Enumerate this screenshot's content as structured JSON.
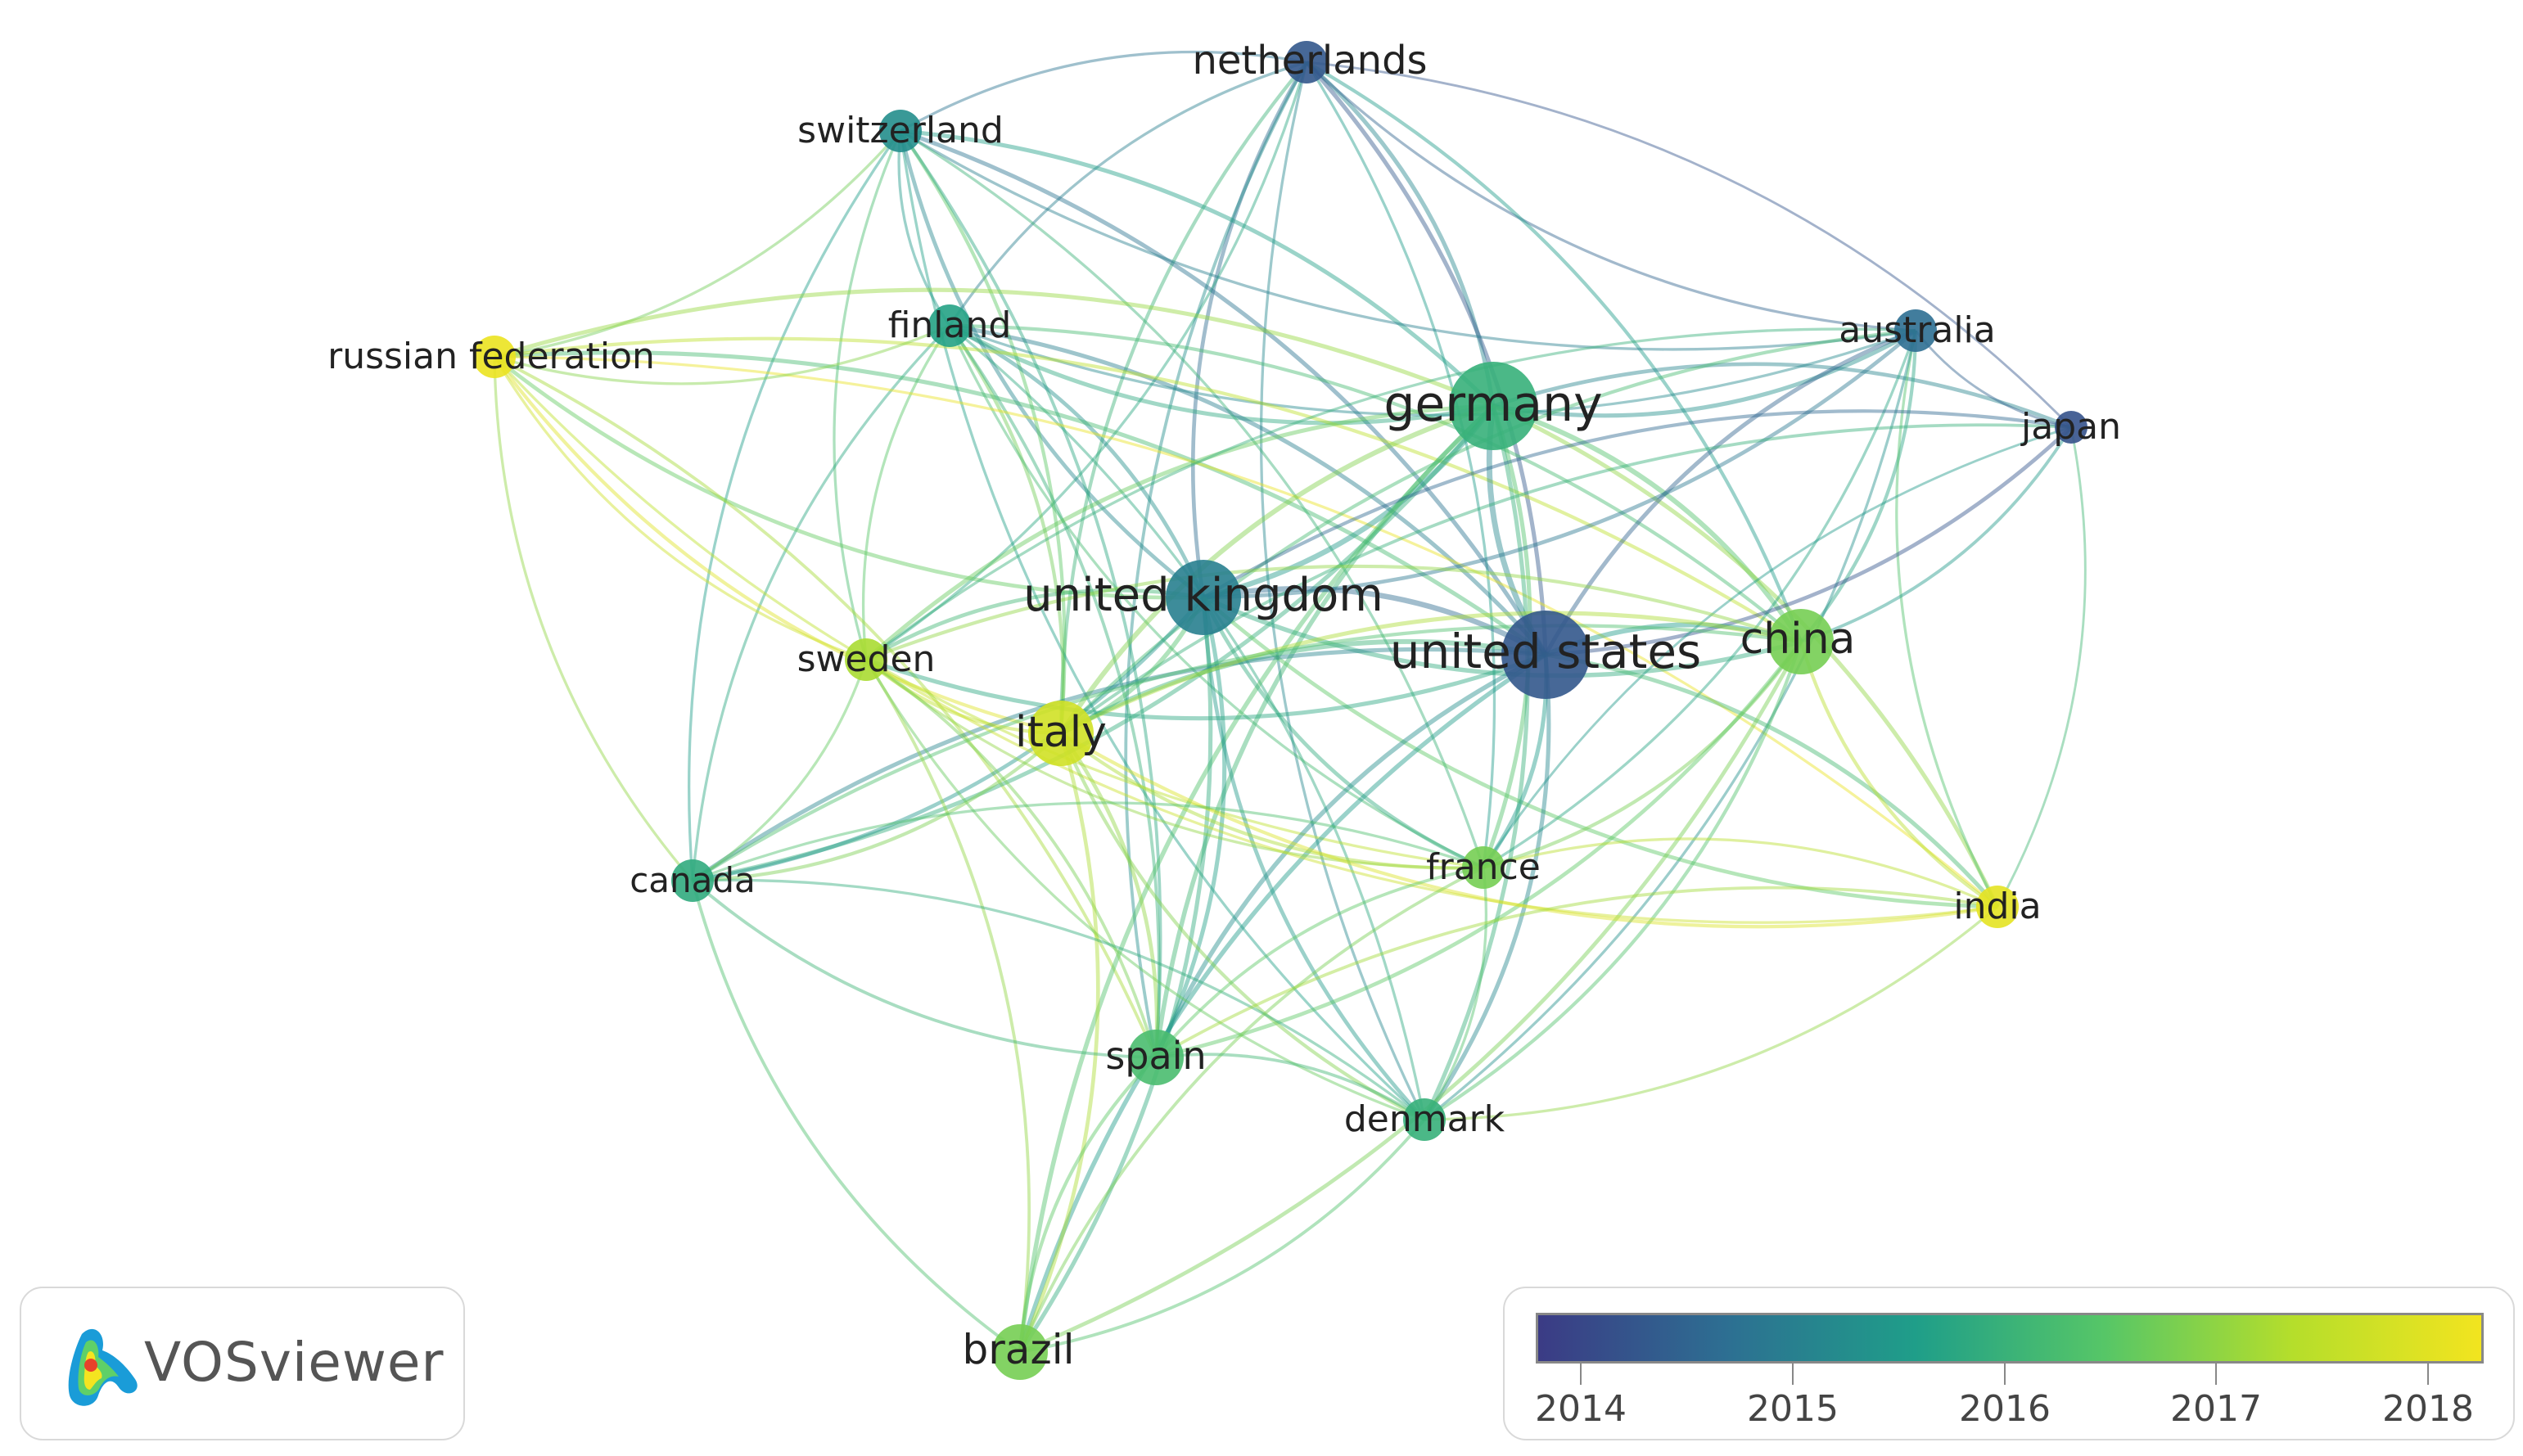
{
  "brand": {
    "name": "VOSviewer"
  },
  "legend": {
    "ticks": [
      "2014",
      "2015",
      "2016",
      "2017",
      "2018"
    ],
    "range": [
      2013.7,
      2018.2
    ],
    "gradient": [
      "#3b3b85",
      "#2d6f92",
      "#1f9e89",
      "#56c667",
      "#b5de2b",
      "#f2e41f"
    ]
  },
  "network": {
    "nodes": [
      {
        "id": "netherlands",
        "label": "netherlands",
        "year": 2014.2,
        "weight": 2
      },
      {
        "id": "switzerland",
        "label": "switzerland",
        "year": 2015.2,
        "weight": 2
      },
      {
        "id": "finland",
        "label": "finland",
        "year": 2015.6,
        "weight": 2
      },
      {
        "id": "russian-federation",
        "label": "russian federation",
        "year": 2018.1,
        "weight": 2
      },
      {
        "id": "germany",
        "label": "germany",
        "year": 2015.9,
        "weight": 6
      },
      {
        "id": "australia",
        "label": "australia",
        "year": 2014.6,
        "weight": 2
      },
      {
        "id": "japan",
        "label": "japan",
        "year": 2014.1,
        "weight": 1
      },
      {
        "id": "united-kingdom",
        "label": "united kingdom",
        "year": 2014.9,
        "weight": 5
      },
      {
        "id": "united-states",
        "label": "united states",
        "year": 2014.2,
        "weight": 6
      },
      {
        "id": "china",
        "label": "china",
        "year": 2016.7,
        "weight": 4
      },
      {
        "id": "sweden",
        "label": "sweden",
        "year": 2017.2,
        "weight": 2
      },
      {
        "id": "italy",
        "label": "italy",
        "year": 2017.7,
        "weight": 4
      },
      {
        "id": "canada",
        "label": "canada",
        "year": 2015.8,
        "weight": 2
      },
      {
        "id": "france",
        "label": "france",
        "year": 2016.7,
        "weight": 2
      },
      {
        "id": "india",
        "label": "india",
        "year": 2018.0,
        "weight": 2
      },
      {
        "id": "spain",
        "label": "spain",
        "year": 2016.2,
        "weight": 3
      },
      {
        "id": "denmark",
        "label": "denmark",
        "year": 2015.9,
        "weight": 2
      },
      {
        "id": "brazil",
        "label": "brazil",
        "year": 2016.7,
        "weight": 3
      }
    ],
    "links": [
      [
        "netherlands",
        "switzerland"
      ],
      [
        "netherlands",
        "germany"
      ],
      [
        "netherlands",
        "united-kingdom"
      ],
      [
        "netherlands",
        "united-states"
      ],
      [
        "netherlands",
        "australia"
      ],
      [
        "netherlands",
        "japan"
      ],
      [
        "netherlands",
        "finland"
      ],
      [
        "netherlands",
        "china"
      ],
      [
        "netherlands",
        "italy"
      ],
      [
        "netherlands",
        "france"
      ],
      [
        "netherlands",
        "denmark"
      ],
      [
        "netherlands",
        "sweden"
      ],
      [
        "netherlands",
        "spain"
      ],
      [
        "switzerland",
        "germany"
      ],
      [
        "switzerland",
        "united-kingdom"
      ],
      [
        "switzerland",
        "united-states"
      ],
      [
        "switzerland",
        "finland"
      ],
      [
        "switzerland",
        "russian-federation"
      ],
      [
        "switzerland",
        "australia"
      ],
      [
        "switzerland",
        "italy"
      ],
      [
        "switzerland",
        "sweden"
      ],
      [
        "switzerland",
        "spain"
      ],
      [
        "switzerland",
        "denmark"
      ],
      [
        "switzerland",
        "france"
      ],
      [
        "switzerland",
        "canada"
      ],
      [
        "finland",
        "united-kingdom"
      ],
      [
        "finland",
        "germany"
      ],
      [
        "finland",
        "united-states"
      ],
      [
        "finland",
        "sweden"
      ],
      [
        "finland",
        "italy"
      ],
      [
        "finland",
        "canada"
      ],
      [
        "finland",
        "spain"
      ],
      [
        "finland",
        "australia"
      ],
      [
        "finland",
        "denmark"
      ],
      [
        "finland",
        "france"
      ],
      [
        "finland",
        "china"
      ],
      [
        "russian-federation",
        "united-kingdom"
      ],
      [
        "russian-federation",
        "united-states"
      ],
      [
        "russian-federation",
        "italy"
      ],
      [
        "russian-federation",
        "germany"
      ],
      [
        "russian-federation",
        "sweden"
      ],
      [
        "russian-federation",
        "india"
      ],
      [
        "russian-federation",
        "france"
      ],
      [
        "russian-federation",
        "spain"
      ],
      [
        "russian-federation",
        "canada"
      ],
      [
        "russian-federation",
        "china"
      ],
      [
        "russian-federation",
        "finland"
      ],
      [
        "germany",
        "united-kingdom"
      ],
      [
        "germany",
        "united-states"
      ],
      [
        "germany",
        "china"
      ],
      [
        "germany",
        "australia"
      ],
      [
        "germany",
        "japan"
      ],
      [
        "germany",
        "italy"
      ],
      [
        "germany",
        "france"
      ],
      [
        "germany",
        "spain"
      ],
      [
        "germany",
        "denmark"
      ],
      [
        "germany",
        "sweden"
      ],
      [
        "germany",
        "canada"
      ],
      [
        "germany",
        "brazil"
      ],
      [
        "germany",
        "india"
      ],
      [
        "australia",
        "united-states"
      ],
      [
        "australia",
        "united-kingdom"
      ],
      [
        "australia",
        "japan"
      ],
      [
        "australia",
        "china"
      ],
      [
        "australia",
        "italy"
      ],
      [
        "australia",
        "france"
      ],
      [
        "australia",
        "india"
      ],
      [
        "australia",
        "denmark"
      ],
      [
        "australia",
        "sweden"
      ],
      [
        "japan",
        "united-states"
      ],
      [
        "japan",
        "united-kingdom"
      ],
      [
        "japan",
        "china"
      ],
      [
        "japan",
        "italy"
      ],
      [
        "japan",
        "india"
      ],
      [
        "japan",
        "france"
      ],
      [
        "united-kingdom",
        "united-states"
      ],
      [
        "united-kingdom",
        "china"
      ],
      [
        "united-kingdom",
        "italy"
      ],
      [
        "united-kingdom",
        "sweden"
      ],
      [
        "united-kingdom",
        "canada"
      ],
      [
        "united-kingdom",
        "france"
      ],
      [
        "united-kingdom",
        "spain"
      ],
      [
        "united-kingdom",
        "denmark"
      ],
      [
        "united-kingdom",
        "brazil"
      ],
      [
        "united-kingdom",
        "india"
      ],
      [
        "united-states",
        "china"
      ],
      [
        "united-states",
        "italy"
      ],
      [
        "united-states",
        "sweden"
      ],
      [
        "united-states",
        "canada"
      ],
      [
        "united-states",
        "france"
      ],
      [
        "united-states",
        "spain"
      ],
      [
        "united-states",
        "denmark"
      ],
      [
        "united-states",
        "brazil"
      ],
      [
        "united-states",
        "india"
      ],
      [
        "china",
        "italy"
      ],
      [
        "china",
        "france"
      ],
      [
        "china",
        "india"
      ],
      [
        "china",
        "denmark"
      ],
      [
        "china",
        "sweden"
      ],
      [
        "china",
        "spain"
      ],
      [
        "china",
        "canada"
      ],
      [
        "china",
        "brazil"
      ],
      [
        "sweden",
        "italy"
      ],
      [
        "sweden",
        "canada"
      ],
      [
        "sweden",
        "denmark"
      ],
      [
        "sweden",
        "spain"
      ],
      [
        "sweden",
        "france"
      ],
      [
        "sweden",
        "brazil"
      ],
      [
        "sweden",
        "india"
      ],
      [
        "italy",
        "canada"
      ],
      [
        "italy",
        "france"
      ],
      [
        "italy",
        "spain"
      ],
      [
        "italy",
        "denmark"
      ],
      [
        "italy",
        "brazil"
      ],
      [
        "italy",
        "india"
      ],
      [
        "canada",
        "france"
      ],
      [
        "canada",
        "spain"
      ],
      [
        "canada",
        "denmark"
      ],
      [
        "canada",
        "brazil"
      ],
      [
        "france",
        "india"
      ],
      [
        "france",
        "spain"
      ],
      [
        "france",
        "denmark"
      ],
      [
        "france",
        "brazil"
      ],
      [
        "india",
        "denmark"
      ],
      [
        "india",
        "spain"
      ],
      [
        "spain",
        "denmark"
      ],
      [
        "spain",
        "brazil"
      ],
      [
        "denmark",
        "brazil"
      ]
    ]
  }
}
